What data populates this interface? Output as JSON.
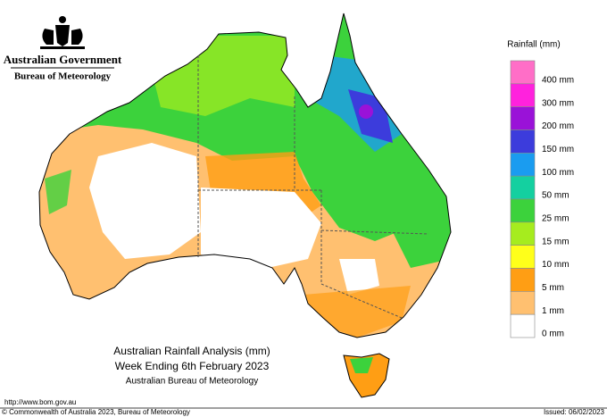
{
  "header": {
    "government": "Australian Government",
    "agency": "Bureau of Meteorology"
  },
  "legend": {
    "title": "Rainfall (mm)",
    "colors": [
      "#ff6ec7",
      "#ff22dd",
      "#9a12d8",
      "#3c3cdc",
      "#1a9cf0",
      "#14d0a0",
      "#3cd23c",
      "#a6ec1e",
      "#ffff1a",
      "#ff9e14",
      "#ffc070",
      "#ffffff"
    ],
    "labels": [
      "400 mm",
      "300 mm",
      "200 mm",
      "150 mm",
      "100 mm",
      "50 mm",
      "25 mm",
      "15 mm",
      "10 mm",
      "5 mm",
      "1 mm",
      "0 mm"
    ]
  },
  "title": {
    "line1": "Australian Rainfall Analysis (mm)",
    "line2": "Week Ending 6th February 2023",
    "line3": "Australian Bureau of Meteorology"
  },
  "footer": {
    "url": "http://www.bom.gov.au",
    "copyright": "© Commonwealth of Australia 2023, Bureau of Meteorology",
    "issued": "Issued: 06/02/2023"
  }
}
